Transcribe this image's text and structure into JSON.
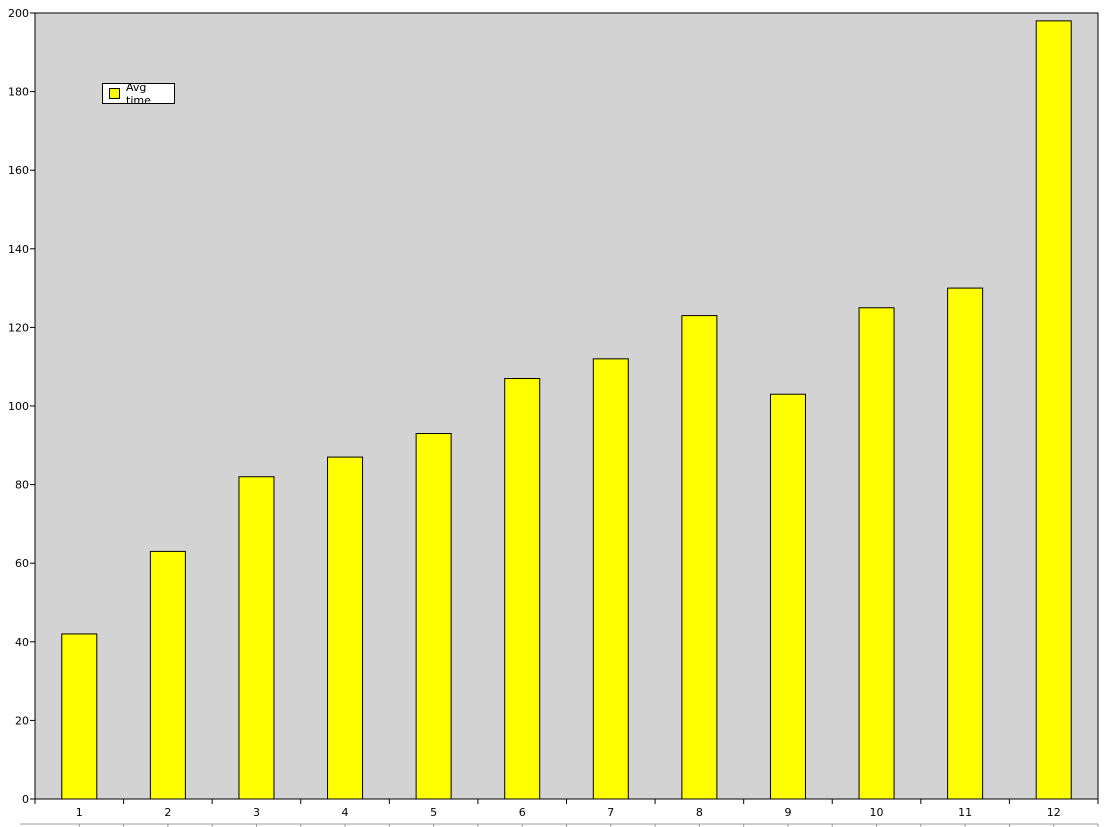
{
  "chart_data": {
    "type": "bar",
    "categories": [
      "1",
      "2",
      "3",
      "4",
      "5",
      "6",
      "7",
      "8",
      "9",
      "10",
      "11",
      "12"
    ],
    "series": [
      {
        "name": "Avg time",
        "values": [
          42,
          63,
          82,
          87,
          93,
          107,
          112,
          123,
          103,
          125,
          130,
          198
        ]
      }
    ],
    "ylim": [
      0,
      200
    ],
    "yticks": [
      0,
      20,
      40,
      60,
      80,
      100,
      120,
      140,
      160,
      180,
      200
    ],
    "title": "",
    "xlabel": "",
    "ylabel": "",
    "grid": false,
    "legend_position": "top-left",
    "colors": {
      "bar_fill": "#ffff00",
      "bar_stroke": "#000000",
      "plot_background": "#d3d3d3"
    }
  }
}
